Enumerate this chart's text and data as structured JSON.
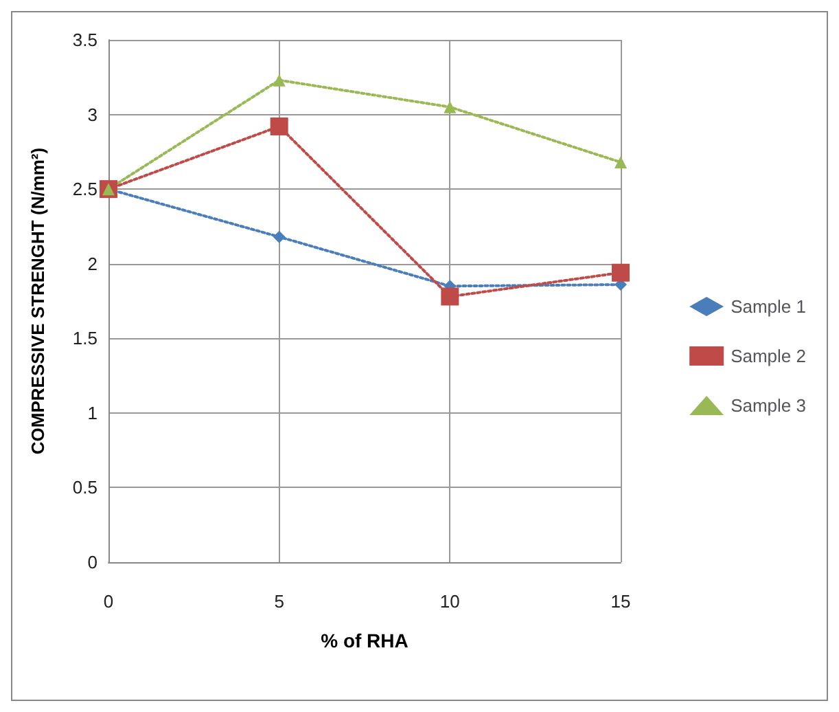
{
  "chart_data": {
    "type": "line",
    "xlabel": "% of RHA",
    "ylabel": "COMPRESSIVE STRENGHT (N/mm²)",
    "x": [
      0,
      5,
      10,
      15
    ],
    "xlim": [
      0,
      15
    ],
    "xticks": [
      0,
      5,
      10,
      15
    ],
    "ylim": [
      0,
      3.5
    ],
    "yticks": [
      0,
      0.5,
      1,
      1.5,
      2,
      2.5,
      3,
      3.5
    ],
    "grid": true,
    "legend": "right",
    "line_style": "dotted",
    "series": [
      {
        "name": "Sample 1",
        "color": "#4a7ebb",
        "marker": "diamond",
        "values": [
          2.5,
          2.18,
          1.85,
          1.86
        ]
      },
      {
        "name": "Sample 2",
        "color": "#be4b48",
        "marker": "square",
        "values": [
          2.5,
          2.92,
          1.78,
          1.94
        ]
      },
      {
        "name": "Sample 3",
        "color": "#98b954",
        "marker": "triangle",
        "values": [
          2.5,
          3.23,
          3.05,
          2.68
        ]
      }
    ]
  }
}
